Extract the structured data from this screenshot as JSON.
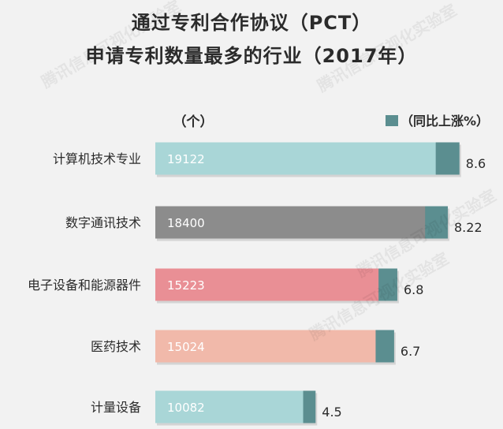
{
  "watermark": "腾讯信息可视化实验室",
  "chart_data": {
    "type": "bar",
    "orientation": "horizontal",
    "title_lines": [
      "通过专利合作协议（PCT）",
      "申请专利数量最多的行业（2017年）"
    ],
    "unit_label": "（个）",
    "legend": {
      "label": "（同比上涨%）",
      "color": "#5b8e90",
      "placement": "top-right"
    },
    "categories": [
      "计算机技术专业",
      "数字通讯技术",
      "电子设备和能源器件",
      "医药技术",
      "计量设备"
    ],
    "values": [
      19122,
      18400,
      15223,
      15024,
      10082
    ],
    "growth": [
      8.6,
      8.22,
      6.8,
      6.7,
      4.5
    ],
    "bar_colors": [
      "#a9d6d7",
      "#8c8c8c",
      "#e98f95",
      "#f1b9aa",
      "#a9d6d7"
    ],
    "growth_color": "#5b8e90",
    "xlim": [
      0,
      22000
    ],
    "grid": false
  }
}
